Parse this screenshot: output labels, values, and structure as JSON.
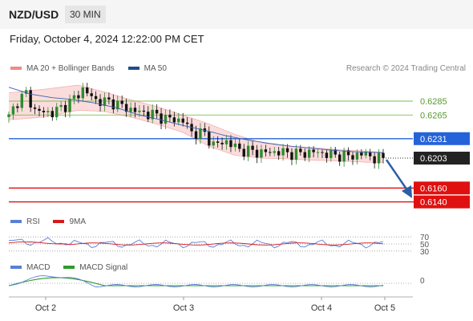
{
  "header": {
    "pair": "NZD/USD",
    "timeframe": "30 MIN"
  },
  "date_text": "Friday, October 4, 2024 12:22:00 PM CET",
  "credit": "Research © 2024 Trading Central",
  "legends": {
    "price": [
      {
        "label": "MA 20 + Bollinger Bands",
        "color": "#f08a8a"
      },
      {
        "label": "MA 50",
        "color": "#1f4e8c"
      }
    ],
    "rsi": [
      {
        "label": "RSI",
        "color": "#5b7fd6"
      },
      {
        "label": "9MA",
        "color": "#d41a1a"
      }
    ],
    "macd": [
      {
        "label": "MACD",
        "color": "#5b7fd6"
      },
      {
        "label": "MACD Signal",
        "color": "#2e9a2e"
      }
    ]
  },
  "colors": {
    "green_level": "#7dbf4f",
    "blue_level": "#2563d9",
    "red_level": "#e01010",
    "arrow": "#2b5ea7",
    "up_candle": "#2e8b2e",
    "down_candle": "#111111",
    "band_fill": "#fbdcdc"
  },
  "chart_data": {
    "type": "candlestick",
    "x_ticks": [
      "Oct 2",
      "Oct 3",
      "Oct 4",
      "Oct 5"
    ],
    "y_range": [
      0.6128,
      0.6315
    ],
    "levels": [
      {
        "value": 0.6285,
        "label": "0.6285",
        "kind": "resistance"
      },
      {
        "value": 0.6265,
        "label": "0.6265",
        "kind": "resistance"
      },
      {
        "value": 0.6231,
        "label": "0.6231",
        "kind": "pivot"
      },
      {
        "value": 0.6203,
        "label": "0.6203",
        "kind": "last"
      },
      {
        "value": 0.616,
        "label": "0.6160",
        "kind": "support"
      },
      {
        "value": 0.614,
        "label": "0.6140",
        "kind": "support"
      }
    ],
    "price_path": [
      [
        0,
        0.6262
      ],
      [
        2,
        0.6285
      ],
      [
        4,
        0.6296
      ],
      [
        6,
        0.6271
      ],
      [
        10,
        0.6268
      ],
      [
        14,
        0.6283
      ],
      [
        17,
        0.6302
      ],
      [
        20,
        0.6286
      ],
      [
        24,
        0.6283
      ],
      [
        27,
        0.6275
      ],
      [
        30,
        0.6269
      ],
      [
        33,
        0.6266
      ],
      [
        36,
        0.626
      ],
      [
        40,
        0.6257
      ],
      [
        42,
        0.624
      ],
      [
        45,
        0.6238
      ],
      [
        47,
        0.6222
      ],
      [
        50,
        0.6227
      ],
      [
        53,
        0.6215
      ],
      [
        58,
        0.6211
      ],
      [
        62,
        0.6212
      ],
      [
        66,
        0.6209
      ],
      [
        70,
        0.6212
      ],
      [
        74,
        0.6208
      ],
      [
        78,
        0.6206
      ],
      [
        82,
        0.6209
      ],
      [
        84,
        0.6202
      ],
      [
        86,
        0.6203
      ]
    ],
    "ma50_path": [
      [
        0,
        0.6305
      ],
      [
        5,
        0.6295
      ],
      [
        10,
        0.629
      ],
      [
        15,
        0.6287
      ],
      [
        20,
        0.6282
      ],
      [
        25,
        0.6275
      ],
      [
        30,
        0.6265
      ],
      [
        35,
        0.6258
      ],
      [
        40,
        0.625
      ],
      [
        45,
        0.6243
      ],
      [
        50,
        0.6235
      ],
      [
        55,
        0.6229
      ],
      [
        60,
        0.6224
      ],
      [
        65,
        0.622
      ],
      [
        70,
        0.6217
      ],
      [
        75,
        0.6214
      ],
      [
        80,
        0.6212
      ],
      [
        86,
        0.6211
      ]
    ],
    "band_upper": [
      [
        0,
        0.6297
      ],
      [
        8,
        0.6302
      ],
      [
        16,
        0.6308
      ],
      [
        22,
        0.6298
      ],
      [
        28,
        0.6287
      ],
      [
        34,
        0.6277
      ],
      [
        40,
        0.6265
      ],
      [
        46,
        0.6252
      ],
      [
        52,
        0.6237
      ],
      [
        58,
        0.6225
      ],
      [
        64,
        0.622
      ],
      [
        70,
        0.6218
      ],
      [
        76,
        0.6215
      ],
      [
        82,
        0.6213
      ],
      [
        86,
        0.6211
      ]
    ],
    "band_lower": [
      [
        0,
        0.6258
      ],
      [
        8,
        0.6262
      ],
      [
        16,
        0.6272
      ],
      [
        22,
        0.627
      ],
      [
        28,
        0.6262
      ],
      [
        34,
        0.6252
      ],
      [
        40,
        0.624
      ],
      [
        46,
        0.622
      ],
      [
        52,
        0.6207
      ],
      [
        58,
        0.6203
      ],
      [
        64,
        0.6202
      ],
      [
        70,
        0.62
      ],
      [
        76,
        0.6199
      ],
      [
        82,
        0.6197
      ],
      [
        86,
        0.6197
      ]
    ],
    "forecast_arrow": {
      "from": 0.6203,
      "to": 0.615
    },
    "rsi": {
      "levels": [
        70,
        50,
        30
      ],
      "labels": [
        "70",
        "50",
        "30"
      ]
    },
    "macd": {
      "levels": [
        0
      ],
      "labels": [
        "0"
      ]
    }
  }
}
